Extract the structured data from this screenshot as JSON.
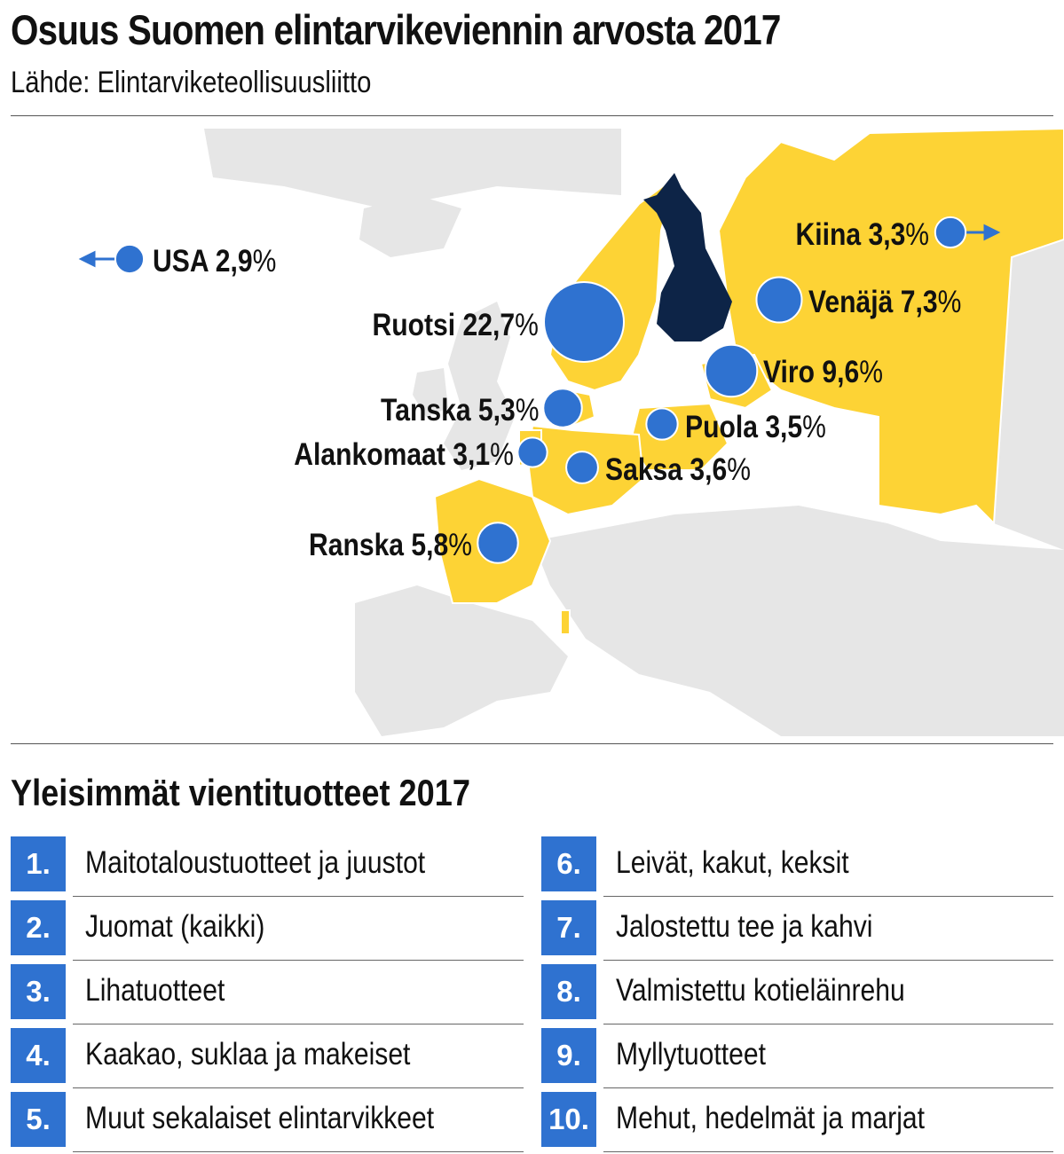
{
  "header": {
    "title": "Osuus Suomen elintarvikeviennin arvosta 2017",
    "source": "Lähde: Elintarviketeollisuusliitto"
  },
  "colors": {
    "land": "#e6e6e6",
    "export_country": "#fdd335",
    "finland": "#0d2447",
    "bubble": "#2f72d0"
  },
  "map_labels": [
    {
      "country": "USA",
      "value": "2,9",
      "pct": "%",
      "share": 2.9
    },
    {
      "country": "Kiina",
      "value": "3,3",
      "pct": "%",
      "share": 3.3
    },
    {
      "country": "Venäjä",
      "value": "7,3",
      "pct": "%",
      "share": 7.3
    },
    {
      "country": "Ruotsi",
      "value": "22,7",
      "pct": "%",
      "share": 22.7
    },
    {
      "country": "Viro",
      "value": "9,6",
      "pct": "%",
      "share": 9.6
    },
    {
      "country": "Tanska",
      "value": "5,3",
      "pct": "%",
      "share": 5.3
    },
    {
      "country": "Puola",
      "value": "3,5",
      "pct": "%",
      "share": 3.5
    },
    {
      "country": "Alankomaat",
      "value": "3,1",
      "pct": "%",
      "share": 3.1
    },
    {
      "country": "Saksa",
      "value": "3,6",
      "pct": "%",
      "share": 3.6
    },
    {
      "country": "Ranska",
      "value": "5,8",
      "pct": "%",
      "share": 5.8
    }
  ],
  "products": {
    "title": "Yleisimmät vientituotteet 2017",
    "items": [
      {
        "num": "1.",
        "label": "Maitotaloustuotteet ja juustot"
      },
      {
        "num": "2.",
        "label": "Juomat (kaikki)"
      },
      {
        "num": "3.",
        "label": "Lihatuotteet"
      },
      {
        "num": "4.",
        "label": "Kaakao, suklaa ja makeiset"
      },
      {
        "num": "5.",
        "label": "Muut sekalaiset elintarvikkeet"
      },
      {
        "num": "6.",
        "label": "Leivät, kakut, keksit"
      },
      {
        "num": "7.",
        "label": "Jalostettu tee ja kahvi"
      },
      {
        "num": "8.",
        "label": "Valmistettu kotieläinrehu"
      },
      {
        "num": "9.",
        "label": "Myllytuotteet"
      },
      {
        "num": "10.",
        "label": "Mehut, hedelmät ja marjat"
      }
    ]
  }
}
